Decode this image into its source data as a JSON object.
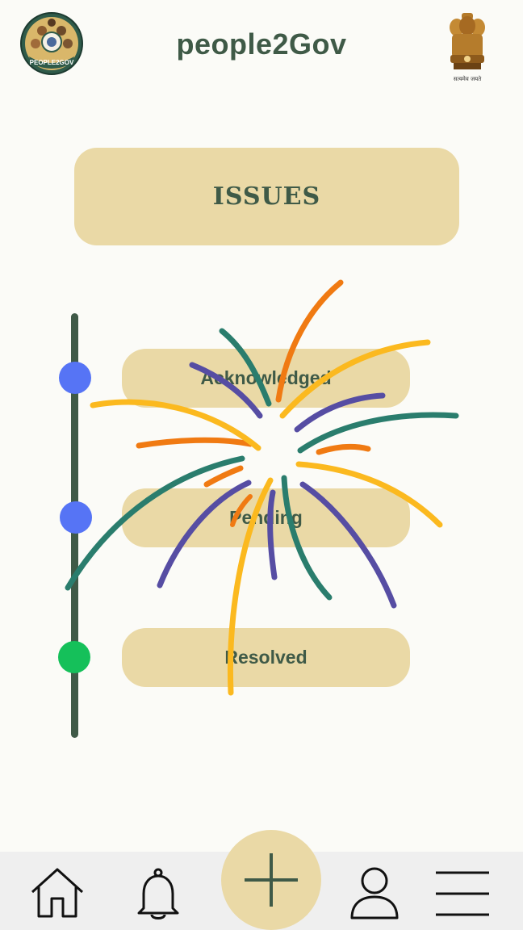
{
  "header": {
    "app_title": "people2Gov",
    "left_logo_text": "PEOPLE2GOV",
    "emblem_motto": "सत्यमेव जयते"
  },
  "issues": {
    "banner_label": "ISSUES"
  },
  "timeline": {
    "stages": [
      {
        "label": "Acknowledged",
        "dot_color": "#5674f5"
      },
      {
        "label": "Pending",
        "dot_color": "#5674f5"
      },
      {
        "label": "Resolved",
        "dot_color": "#15c05a"
      }
    ],
    "line_color": "#3f5a47"
  },
  "colors": {
    "accent": "#ead9a6",
    "primary_text": "#3f5a47",
    "background": "#fbfbf7",
    "nav_background": "#efefef",
    "firework": [
      "#f07a12",
      "#fbb91f",
      "#2a7d6d",
      "#564da3"
    ]
  },
  "bottom_nav": {
    "items": [
      "home-icon",
      "bell-icon",
      "add-icon",
      "user-icon",
      "menu-icon"
    ]
  }
}
